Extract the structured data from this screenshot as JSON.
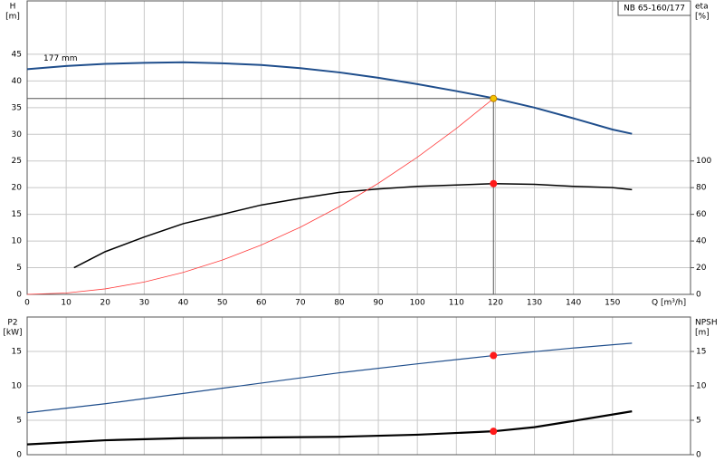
{
  "chart_data": [
    {
      "type": "line",
      "y_label": "H",
      "y_unit": "[m]",
      "y2_label": "eta",
      "y2_unit": "[%]",
      "x_label": "Q [m³/h]",
      "curve_label": "177 mm",
      "pump_label": "NB 65-160/177",
      "xlim": [
        0,
        170
      ],
      "xticks": [
        0,
        10,
        20,
        30,
        40,
        50,
        60,
        70,
        80,
        90,
        100,
        110,
        120,
        130,
        140,
        150
      ],
      "xtick_labels": true,
      "ylim": [
        0,
        55
      ],
      "yticks": [
        0,
        5,
        10,
        15,
        20,
        25,
        30,
        35,
        40,
        45
      ],
      "y2lim": [
        0,
        220
      ],
      "y2ticks": [
        0,
        20,
        40,
        60,
        80,
        100
      ],
      "grid": true,
      "series": [
        {
          "color": "#1f4e8c",
          "width": 2,
          "axis": "y",
          "x": [
            0,
            10,
            20,
            30,
            40,
            50,
            60,
            70,
            80,
            90,
            100,
            110,
            120,
            130,
            140,
            150,
            155
          ],
          "values": [
            42.2,
            42.8,
            43.2,
            43.4,
            43.5,
            43.3,
            43.0,
            42.4,
            41.6,
            40.6,
            39.4,
            38.1,
            36.7,
            35.0,
            33.0,
            30.9,
            30.1
          ]
        },
        {
          "color": "#000000",
          "width": 1.5,
          "axis": "y2",
          "x": [
            12,
            20,
            30,
            40,
            50,
            60,
            70,
            80,
            90,
            100,
            110,
            119.5,
            130,
            140,
            150,
            155
          ],
          "values": [
            20,
            32,
            43,
            53,
            60,
            67,
            72,
            76.5,
            79,
            81,
            82,
            83,
            82.5,
            81,
            80,
            78.5
          ]
        },
        {
          "color": "#ff3b3b",
          "width": 0.8,
          "axis": "y",
          "x": [
            0,
            10,
            20,
            30,
            40,
            50,
            60,
            70,
            80,
            90,
            100,
            110,
            119.5
          ],
          "values": [
            0,
            0.26,
            1.03,
            2.31,
            4.11,
            6.42,
            9.25,
            12.59,
            16.45,
            20.82,
            25.7,
            31.1,
            36.7
          ]
        }
      ],
      "points": [
        {
          "x": 119.5,
          "y": 36.7,
          "color": "#f5c400",
          "axis": "y",
          "crosshair": true
        },
        {
          "x": 119.5,
          "y": 83,
          "color": "#ff1a1a",
          "axis": "y2",
          "crosshair": false
        }
      ]
    },
    {
      "type": "line",
      "y_label": "P2",
      "y_unit": "[kW]",
      "y2_label": "NPSH",
      "y2_unit": "[m]",
      "xlim": [
        0,
        170
      ],
      "xticks": [
        0,
        10,
        20,
        30,
        40,
        50,
        60,
        70,
        80,
        90,
        100,
        110,
        120,
        130,
        140,
        150
      ],
      "xtick_labels": false,
      "ylim": [
        0,
        20
      ],
      "yticks": [
        0,
        5,
        10,
        15
      ],
      "y2lim": [
        0,
        20
      ],
      "y2ticks": [
        0,
        5,
        10,
        15
      ],
      "grid": true,
      "series": [
        {
          "color": "#1f4e8c",
          "width": 1.2,
          "axis": "y",
          "x": [
            0,
            20,
            40,
            60,
            80,
            100,
            119.5,
            140,
            155
          ],
          "values": [
            6.1,
            7.4,
            8.9,
            10.4,
            11.9,
            13.2,
            14.4,
            15.5,
            16.2
          ]
        },
        {
          "color": "#000000",
          "width": 2.2,
          "axis": "y2",
          "x": [
            0,
            20,
            40,
            60,
            80,
            100,
            119.5,
            130,
            140,
            155
          ],
          "values": [
            1.5,
            2.1,
            2.4,
            2.5,
            2.6,
            2.9,
            3.4,
            4.0,
            4.9,
            6.3
          ]
        }
      ],
      "points": [
        {
          "x": 119.5,
          "y": 14.4,
          "color": "#ff1a1a",
          "axis": "y",
          "crosshair": false
        },
        {
          "x": 119.5,
          "y": 3.4,
          "color": "#ff1a1a",
          "axis": "y2",
          "crosshair": false
        }
      ]
    }
  ]
}
